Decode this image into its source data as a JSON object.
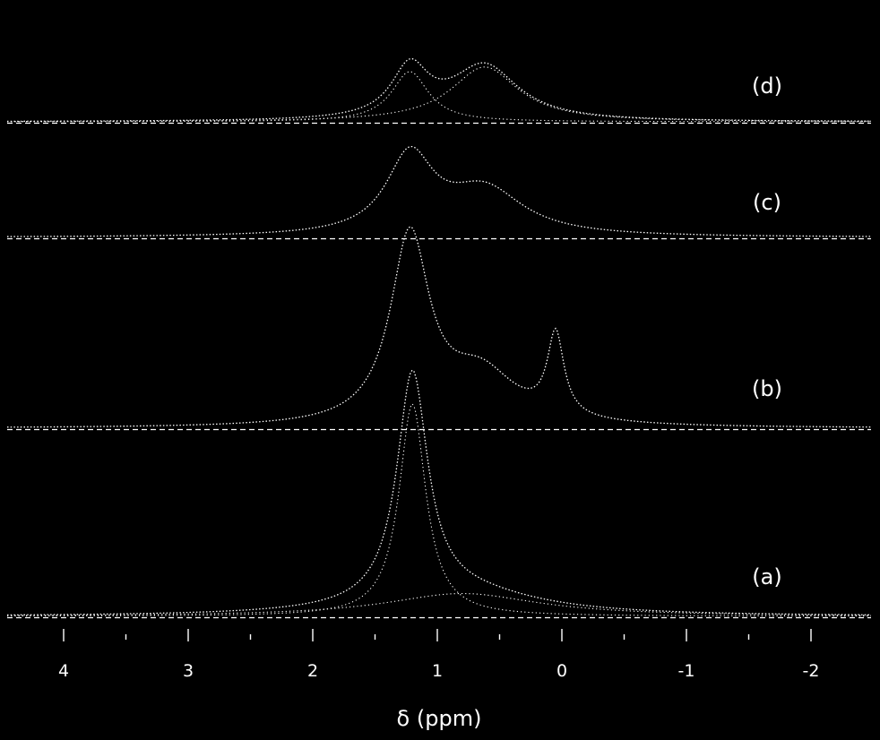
{
  "chart_data": {
    "type": "line",
    "xlabel": "δ (ppm)",
    "x_reversed": true,
    "xlim": [
      4.1,
      -2.1
    ],
    "x_ticks": [
      4,
      3,
      2,
      1,
      0,
      -1,
      -2
    ],
    "x_tick_labels": [
      "4",
      "3",
      "2",
      "1",
      "0",
      "-1",
      "-2"
    ],
    "grid": false,
    "legend": "none",
    "colors": {
      "background": "#000000",
      "line": "#ffffff"
    },
    "spectra": [
      {
        "label": "(a)",
        "total": {
          "peaks": [
            {
              "center": 1.2,
              "height": 1.0,
              "width": 0.15
            },
            {
              "center": 0.8,
              "height": 0.1,
              "width": 0.75
            }
          ]
        },
        "components": [
          {
            "peaks": [
              {
                "center": 1.2,
                "height": 0.93,
                "width": 0.13
              }
            ]
          },
          {
            "peaks": [
              {
                "center": 0.8,
                "height": 0.1,
                "width": 0.75
              }
            ]
          }
        ]
      },
      {
        "label": "(b)",
        "total": {
          "peaks": [
            {
              "center": 1.22,
              "height": 0.82,
              "width": 0.19
            },
            {
              "center": 0.65,
              "height": 0.22,
              "width": 0.35
            },
            {
              "center": 0.05,
              "height": 0.36,
              "width": 0.08
            }
          ]
        },
        "components": []
      },
      {
        "label": "(c)",
        "total": {
          "peaks": [
            {
              "center": 1.22,
              "height": 0.34,
              "width": 0.23
            },
            {
              "center": 0.62,
              "height": 0.2,
              "width": 0.38
            }
          ]
        },
        "components": []
      },
      {
        "label": "(d)",
        "total": {
          "peaks": [
            {
              "center": 1.22,
              "height": 0.22,
              "width": 0.18
            },
            {
              "center": 0.62,
              "height": 0.24,
              "width": 0.33
            }
          ]
        },
        "components": [
          {
            "peaks": [
              {
                "center": 1.22,
                "height": 0.22,
                "width": 0.18
              }
            ]
          },
          {
            "peaks": [
              {
                "center": 0.62,
                "height": 0.24,
                "width": 0.33
              }
            ]
          }
        ]
      }
    ]
  }
}
